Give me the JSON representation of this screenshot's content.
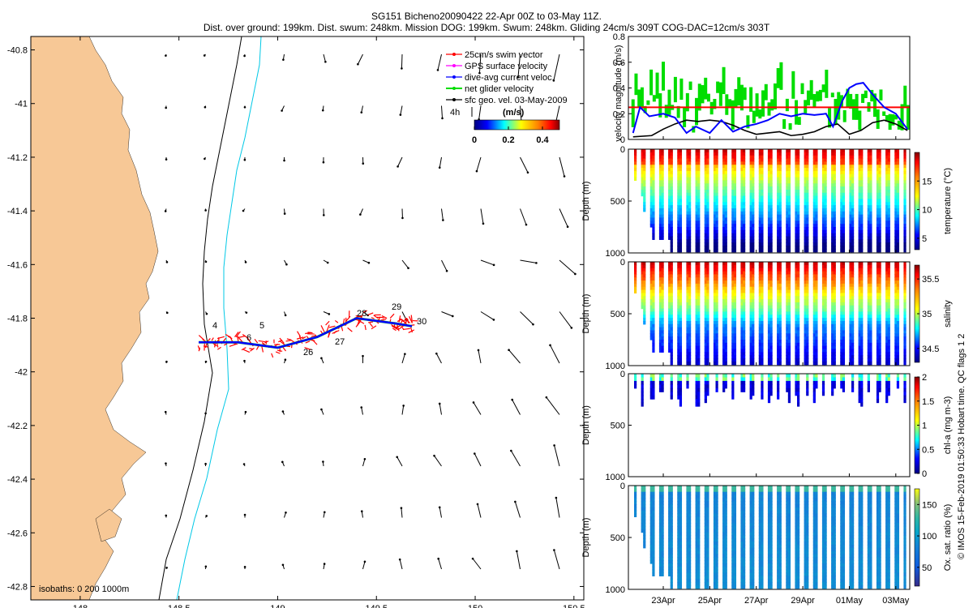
{
  "header": {
    "title": "SG151 Bicheno20090422 22-Apr 00Z to 03-May 11Z.",
    "subtitle": "Dist. over ground: 199km. Dist. swum: 248km. Mission DOG: 199km. Swum: 248km. Gliding 24cm/s 309T COG-DAC=12cm/s 303T"
  },
  "side_note": "© IMOS 15-Feb-2019 01:50:33 Hobart time. QC flags 1  2",
  "colors": {
    "land": "#f7c896",
    "isobath_200": "#000000",
    "isobath_1000": "#00c8e6",
    "swim_vector": "#ff0000",
    "gps_velocity": "#ff00ff",
    "dive_avg_current": "#0000ff",
    "net_glider": "#00dd00",
    "geo_velocity": "#000000"
  },
  "chart_data": [
    {
      "id": "map",
      "type": "scatter",
      "x": [
        148.6,
        148.8,
        149.0,
        149.2,
        149.4,
        149.6,
        149.68
      ],
      "y": [
        -41.89,
        -41.89,
        -41.91,
        -41.87,
        -41.8,
        -41.82,
        -41.83
      ],
      "xticks": [
        "148",
        "148.5",
        "149",
        "149.5",
        "150",
        "150.5"
      ],
      "yticks": [
        "-40.8",
        "-41",
        "-41.2",
        "-41.4",
        "-41.6",
        "-41.8",
        "-42",
        "-42.2",
        "-42.4",
        "-42.6",
        "-42.8"
      ],
      "xlim": [
        147.75,
        150.55
      ],
      "ylim": [
        -42.85,
        -40.75
      ],
      "track_labels": [
        "4",
        "5",
        "6",
        "26",
        "27",
        "28",
        "29",
        "30"
      ],
      "legend": [
        {
          "label": "25cm/s swim vector",
          "color": "#ff0000"
        },
        {
          "label": "GPS surface velocity",
          "color": "#ff00ff"
        },
        {
          "label": "dive-avg current veloc.",
          "color": "#0000ff"
        },
        {
          "label": "net glider velocity",
          "color": "#00dd00"
        },
        {
          "label": "sfc geo. vel. 03-May-2009",
          "color": "#000000"
        }
      ],
      "legend_position": "top-right",
      "colorbar": {
        "title": "(m/s)",
        "ticks": [
          "0",
          "0.2",
          "0.4"
        ],
        "range": [
          0,
          0.5
        ],
        "scale_label": "4h"
      },
      "isobaths_label": "isobaths: 0   200  1000m"
    },
    {
      "id": "velocity",
      "type": "line",
      "ylabel": "velocity magnitude (m/s)",
      "yticks": [
        "0",
        "0.2",
        "0.4",
        "0.6",
        "0.8"
      ],
      "ylim": [
        0,
        0.8
      ],
      "xlim": [
        21.5,
        33.6
      ],
      "reference_line": 0.25,
      "series": [
        {
          "color": "#0000ff",
          "x": [
            21.7,
            22.0,
            22.4,
            23.0,
            23.5,
            24.0,
            24.4,
            25.0,
            25.5,
            26.0,
            26.5,
            27.0,
            27.5,
            28.0,
            28.5,
            29.0,
            29.5,
            30.0,
            30.3,
            30.7,
            31.0,
            31.3,
            31.6,
            32.0,
            32.5,
            33.0,
            33.5
          ],
          "values": [
            0.05,
            0.25,
            0.18,
            0.2,
            0.17,
            0.05,
            0.1,
            0.05,
            0.15,
            0.06,
            0.1,
            0.12,
            0.15,
            0.2,
            0.18,
            0.2,
            0.19,
            0.2,
            0.1,
            0.3,
            0.4,
            0.43,
            0.44,
            0.35,
            0.25,
            0.2,
            0.08
          ]
        },
        {
          "color": "#000000",
          "x": [
            21.7,
            22.5,
            23.0,
            23.5,
            24.0,
            24.5,
            25.0,
            25.5,
            26.0,
            26.5,
            27.0,
            27.5,
            28.0,
            28.5,
            29.0,
            29.5,
            30.0,
            30.5,
            31.0,
            31.5,
            32.0,
            32.5,
            33.0,
            33.5
          ],
          "values": [
            0.02,
            0.03,
            0.08,
            0.12,
            0.15,
            0.14,
            0.15,
            0.14,
            0.11,
            0.07,
            0.04,
            0.05,
            0.06,
            0.03,
            0.04,
            0.06,
            0.1,
            0.12,
            0.04,
            0.07,
            0.13,
            0.15,
            0.12,
            0.07
          ]
        },
        {
          "color": "#00dd00",
          "style": "bars",
          "x": [],
          "values": []
        }
      ]
    },
    {
      "id": "temperature",
      "type": "heatmap",
      "ylabel": "Depth (m)",
      "cblabel": "temperature (°C)",
      "yticks": [
        "0",
        "500",
        "1000"
      ],
      "cbticks": [
        "5",
        "10",
        "15"
      ],
      "cbrange": [
        3,
        20
      ]
    },
    {
      "id": "salinity",
      "type": "heatmap",
      "ylabel": "Depth (m)",
      "cblabel": "salinity",
      "yticks": [
        "0",
        "500",
        "1000"
      ],
      "cbticks": [
        "34.5",
        "35",
        "35.5"
      ],
      "cbrange": [
        34.3,
        35.7
      ]
    },
    {
      "id": "chla",
      "type": "heatmap",
      "ylabel": "Depth (m)",
      "cblabel": "chl-a (mg m-3)",
      "yticks": [
        "0",
        "500",
        "1000"
      ],
      "cbticks": [
        "0",
        "0.5",
        "1",
        "1.5",
        "2"
      ],
      "cbrange": [
        0,
        2
      ]
    },
    {
      "id": "oxygen",
      "type": "heatmap",
      "ylabel": "Depth (m)",
      "cblabel": "Ox. sat. ratio (%)",
      "yticks": [
        "0",
        "500",
        "1000"
      ],
      "cbticks": [
        "50",
        "100",
        "150"
      ],
      "cbrange": [
        20,
        175
      ],
      "xticks": [
        "23Apr",
        "25Apr",
        "27Apr",
        "29Apr",
        "01May",
        "03May"
      ]
    }
  ]
}
